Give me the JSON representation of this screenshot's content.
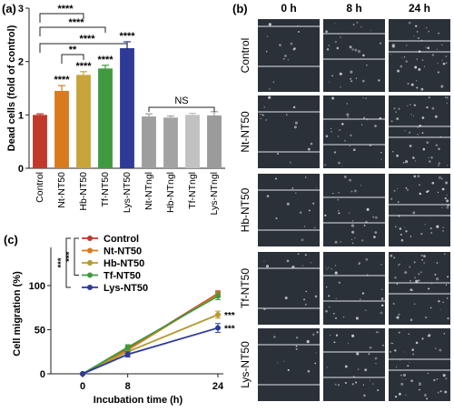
{
  "panel_labels": {
    "a": "(a)",
    "b": "(b)",
    "c": "(c)"
  },
  "chart_data": [
    {
      "panel": "a",
      "type": "bar",
      "ylabel": "Dead cells (fold of control)",
      "ylim": [
        0,
        3
      ],
      "yticks": [
        "0",
        "1",
        "2",
        "3"
      ],
      "categories": [
        "Control",
        "Nt-NT50",
        "Hb-NT50",
        "Tf-NT50",
        "Lys-NT50",
        "Nt-NTngl",
        "Hb-NTngl",
        "Tf-NTngl",
        "Lys-NTngl"
      ],
      "values": [
        1.0,
        1.45,
        1.75,
        1.87,
        2.25,
        0.97,
        0.95,
        1.0,
        0.99
      ],
      "errors": [
        0.02,
        0.1,
        0.06,
        0.06,
        0.12,
        0.05,
        0.03,
        0.03,
        0.07
      ],
      "colors": [
        "#c0392b",
        "#d97a1e",
        "#c8a53a",
        "#3f9a3f",
        "#2d3a98",
        "#9e9e9e",
        "#a3a3a3",
        "#c2c2c2",
        "#9b9b9b"
      ],
      "bar_stars": [
        "",
        "****",
        "****",
        "****",
        "****",
        "",
        "",
        "",
        ""
      ],
      "comparisons": [
        {
          "from": 0,
          "to": 2,
          "label": "****"
        },
        {
          "from": 0,
          "to": 3,
          "label": "****"
        },
        {
          "from": 0,
          "to": 4,
          "label": "****"
        },
        {
          "from": 1,
          "to": 2,
          "label": "**"
        }
      ],
      "ns_bracket": {
        "from": 5,
        "to": 8,
        "label": "NS"
      }
    },
    {
      "panel": "c",
      "type": "line",
      "xlabel": "Incubation time (h)",
      "ylabel": "Cell migration (%)",
      "x": [
        0,
        8,
        24
      ],
      "xticks": [
        "0",
        "8",
        "24"
      ],
      "ylim": [
        0,
        100
      ],
      "yticks": [
        "0",
        "50",
        "100"
      ],
      "series": [
        {
          "name": "Control",
          "color": "#c0392b",
          "values": [
            0,
            28,
            91
          ],
          "errors": [
            0,
            3,
            3
          ]
        },
        {
          "name": "Nt-NT50",
          "color": "#d97a1e",
          "values": [
            0,
            27,
            90
          ],
          "errors": [
            0,
            3,
            3
          ]
        },
        {
          "name": "Hb-NT50",
          "color": "#b59a2e",
          "values": [
            0,
            25,
            67
          ],
          "errors": [
            0,
            3,
            4
          ]
        },
        {
          "name": "Tf-NT50",
          "color": "#3f9a3f",
          "values": [
            0,
            30,
            88
          ],
          "errors": [
            0,
            3,
            4
          ]
        },
        {
          "name": "Lys-NT50",
          "color": "#2d3a98",
          "values": [
            0,
            22,
            52
          ],
          "errors": [
            0,
            3,
            5
          ]
        }
      ],
      "end_stars": [
        {
          "series": 2,
          "label": "***"
        },
        {
          "series": 4,
          "label": "***"
        }
      ],
      "legend_brackets": [
        {
          "from": 0,
          "to": 3,
          "label": "***"
        },
        {
          "from": 0,
          "to": 4,
          "label": "***"
        }
      ]
    }
  ],
  "micrograph_grid": {
    "columns": [
      "0 h",
      "8 h",
      "24 h"
    ],
    "rows": [
      "Control",
      "Nt-NT50",
      "Hb-NT50",
      "Tf-NT50",
      "Lys-NT50"
    ]
  },
  "colors": {
    "axis": "#222222",
    "micro_bg": "#2b3138",
    "micro_line": "#dfe3e8"
  }
}
